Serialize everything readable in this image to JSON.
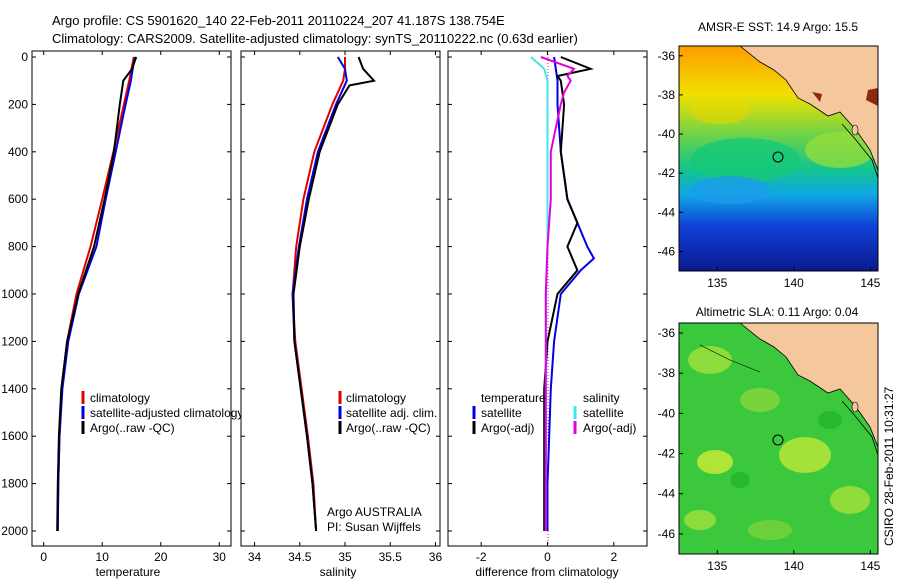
{
  "figure": {
    "title_line1": "Argo profile: CS 5901620_140 22-Feb-2011 20110224_207 41.187S 138.754E",
    "title_line2": "Climatology: CARS2009. Satellite-adjusted climatology: synTS_20110222.nc (0.63d earlier)",
    "credit": "CSIRO 28-Feb-2011 10:31:27"
  },
  "chart_data": [
    {
      "type": "line",
      "panel": "temperature",
      "xlabel": "temperature",
      "ylabel": "",
      "xlim": [
        -2,
        32
      ],
      "ylim": [
        2050,
        0
      ],
      "y_reversed": true,
      "xticks": [
        0,
        10,
        20,
        30
      ],
      "xtick_labels": [
        "0",
        "10",
        "20",
        "30"
      ],
      "yticks": [
        0,
        200,
        400,
        600,
        800,
        1000,
        1200,
        1400,
        1600,
        1800,
        2000
      ],
      "ytick_labels": [
        "0",
        "200",
        "400",
        "600",
        "800",
        "1000",
        "1200",
        "1400",
        "1600",
        "1800",
        "2000"
      ],
      "legend": [
        "climatology",
        "satellite-adjusted climatology",
        "Argo(..raw -QC)"
      ],
      "legend_placement": "lower-right",
      "series": [
        {
          "name": "climatology",
          "color": "#e00000",
          "depth": [
            0,
            50,
            100,
            200,
            400,
            600,
            800,
            1000,
            1200,
            1400,
            1600,
            1800,
            2000
          ],
          "values": [
            15.4,
            15.0,
            14.6,
            13.7,
            11.9,
            10.0,
            8.0,
            5.6,
            4.0,
            3.1,
            2.7,
            2.5,
            2.4
          ]
        },
        {
          "name": "satellite-adjusted climatology",
          "color": "#0000e0",
          "depth": [
            0,
            50,
            100,
            200,
            400,
            600,
            800,
            1000,
            1200,
            1400,
            1600,
            1800,
            2000
          ],
          "values": [
            15.6,
            15.2,
            14.9,
            14.0,
            12.3,
            10.6,
            9.0,
            6.0,
            4.2,
            3.2,
            2.7,
            2.5,
            2.4
          ]
        },
        {
          "name": "Argo(..raw -QC)",
          "color": "#000000",
          "depth": [
            0,
            50,
            100,
            200,
            400,
            600,
            800,
            1000,
            1200,
            1400,
            1600,
            1800,
            2000
          ],
          "values": [
            15.8,
            15.1,
            13.6,
            13.0,
            12.0,
            10.4,
            8.6,
            5.9,
            4.0,
            3.0,
            2.6,
            2.4,
            2.3
          ]
        }
      ]
    },
    {
      "type": "line",
      "panel": "salinity",
      "xlabel": "salinity",
      "ylabel": "",
      "xlim": [
        33.85,
        36.05
      ],
      "ylim": [
        2050,
        0
      ],
      "y_reversed": true,
      "xticks": [
        34,
        34.5,
        35,
        35.5,
        36
      ],
      "xtick_labels": [
        "34",
        "34.5",
        "35",
        "35.5",
        "36"
      ],
      "legend": [
        "climatology",
        "satellite adj. clim.",
        "Argo(..raw -QC)"
      ],
      "legend_placement": "lower-right",
      "annotation": [
        "Argo AUSTRALIA",
        "PI: Susan Wijffels"
      ],
      "series": [
        {
          "name": "climatology",
          "color": "#e00000",
          "depth": [
            0,
            50,
            100,
            200,
            400,
            600,
            800,
            1000,
            1200,
            1400,
            1600,
            1800,
            2000
          ],
          "values": [
            35.0,
            35.0,
            34.98,
            34.86,
            34.66,
            34.54,
            34.46,
            34.42,
            34.45,
            34.52,
            34.59,
            34.65,
            34.68
          ]
        },
        {
          "name": "satellite adj. clim.",
          "color": "#0000e0",
          "depth": [
            0,
            50,
            100,
            200,
            400,
            600,
            800,
            1000,
            1200,
            1400,
            1600,
            1800,
            2000
          ],
          "values": [
            34.92,
            35.0,
            35.02,
            34.9,
            34.7,
            34.58,
            34.49,
            34.42,
            34.44,
            34.51,
            34.58,
            34.64,
            34.68
          ]
        },
        {
          "name": "Argo(..raw -QC)",
          "color": "#000000",
          "depth": [
            0,
            50,
            100,
            120,
            200,
            400,
            600,
            800,
            1000,
            1200,
            1400,
            1600,
            1800,
            2000
          ],
          "values": [
            35.15,
            35.2,
            35.32,
            35.05,
            34.92,
            34.72,
            34.6,
            34.5,
            34.43,
            34.44,
            34.51,
            34.58,
            34.64,
            34.68
          ]
        }
      ]
    },
    {
      "type": "line",
      "panel": "difference",
      "xlabel": "difference from climatology",
      "ylabel": "",
      "xlim": [
        -3,
        3
      ],
      "ylim": [
        2050,
        0
      ],
      "y_reversed": true,
      "xticks": [
        -2,
        0,
        2
      ],
      "xtick_labels": [
        "-2",
        "0",
        "2"
      ],
      "legend_columns": [
        {
          "heading": "temperature",
          "entries": [
            "satellite",
            "Argo(-adj)"
          ]
        },
        {
          "heading": "salinity",
          "entries": [
            "satellite",
            "Argo(-adj)"
          ]
        }
      ],
      "legend_placement": "lower-center",
      "series": [
        {
          "name": "temperature satellite",
          "color": "#0000e0",
          "depth": [
            0,
            100,
            200,
            400,
            600,
            700,
            800,
            850,
            900,
            1000,
            1200,
            1400,
            1600,
            1800,
            2000
          ],
          "values": [
            0.2,
            0.3,
            0.3,
            0.4,
            0.6,
            0.9,
            1.2,
            1.4,
            1.0,
            0.4,
            0.2,
            0.1,
            0.05,
            0.0,
            0.0
          ]
        },
        {
          "name": "temperature Argo(-adj)",
          "color": "#000000",
          "depth": [
            0,
            50,
            80,
            100,
            200,
            400,
            600,
            700,
            800,
            900,
            1000,
            1200,
            1400,
            1600,
            1800,
            2000
          ],
          "values": [
            0.4,
            1.3,
            0.3,
            0.4,
            0.5,
            0.4,
            0.6,
            0.9,
            0.6,
            0.9,
            0.3,
            0.0,
            -0.1,
            -0.1,
            -0.1,
            -0.1
          ]
        },
        {
          "name": "salinity satellite",
          "color": "#40e8e8",
          "depth": [
            0,
            50,
            100,
            200,
            400,
            600,
            800,
            1000,
            1200,
            1400,
            1600,
            1800,
            2000
          ],
          "values": [
            -0.5,
            -0.1,
            0.0,
            0.0,
            0.0,
            0.0,
            0.0,
            -0.05,
            -0.05,
            -0.05,
            -0.05,
            -0.05,
            -0.05
          ]
        },
        {
          "name": "salinity Argo(-adj)",
          "color": "#e000e0",
          "depth": [
            0,
            50,
            80,
            100,
            150,
            200,
            400,
            600,
            800,
            1000,
            1200,
            1400,
            1600,
            1800,
            2000
          ],
          "values": [
            -0.2,
            0.8,
            0.6,
            0.7,
            0.5,
            0.4,
            0.1,
            0.1,
            0.0,
            -0.05,
            -0.05,
            -0.05,
            -0.05,
            -0.05,
            -0.05
          ]
        }
      ]
    },
    {
      "type": "heatmap",
      "panel": "sst_map",
      "title": "AMSR-E SST: 14.9 Argo: 15.5",
      "xlim": [
        132.5,
        145.5
      ],
      "ylim": [
        -47,
        -35.5
      ],
      "xticks": [
        135,
        140,
        145
      ],
      "yticks": [
        -36,
        -38,
        -40,
        -42,
        -44,
        -46
      ],
      "marker": {
        "lon": 138.754,
        "lat": -41.187
      }
    },
    {
      "type": "heatmap",
      "panel": "sla_map",
      "title": "Altimetric SLA: 0.11 Argo: 0.04",
      "xlim": [
        132.5,
        145.5
      ],
      "ylim": [
        -47,
        -35.5
      ],
      "xticks": [
        135,
        140,
        145
      ],
      "yticks": [
        -36,
        -38,
        -40,
        -42,
        -44,
        -46
      ],
      "marker": {
        "lon": 138.754,
        "lat": -41.187
      }
    }
  ]
}
